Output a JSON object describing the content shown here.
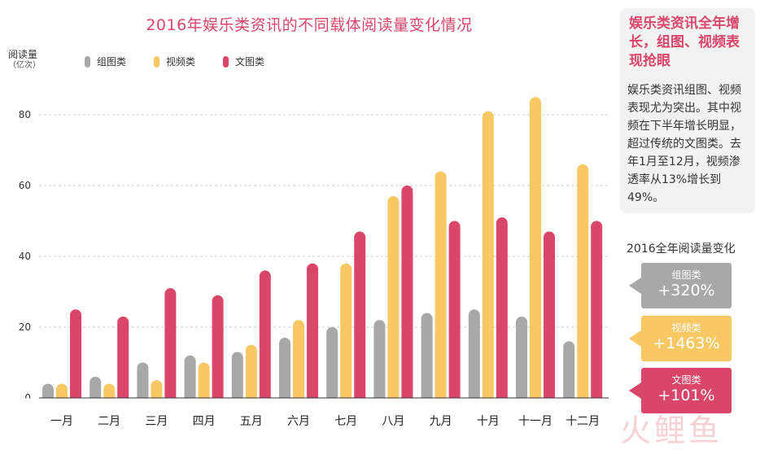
{
  "chart_data": {
    "type": "bar",
    "title": "2016年娱乐类资讯的不同载体阅读量变化情况",
    "ylabel": "阅读量",
    "ylabel_unit": "（亿次）",
    "ylim": [
      0,
      90
    ],
    "yticks": [
      0,
      20,
      40,
      60,
      80
    ],
    "grid": true,
    "legend_position": "top-left",
    "categories": [
      "一月",
      "二月",
      "三月",
      "四月",
      "五月",
      "六月",
      "七月",
      "八月",
      "九月",
      "十月",
      "十一月",
      "十二月"
    ],
    "series": [
      {
        "name": "组图类",
        "color": "#a8a8a8",
        "values": [
          4,
          6,
          10,
          12,
          13,
          17,
          20,
          22,
          24,
          25,
          23,
          16
        ]
      },
      {
        "name": "视频类",
        "color": "#f7c864",
        "values": [
          4,
          4,
          5,
          10,
          15,
          22,
          38,
          57,
          64,
          81,
          85,
          66
        ]
      },
      {
        "name": "文图类",
        "color": "#d9466a",
        "values": [
          25,
          23,
          31,
          29,
          36,
          38,
          47,
          60,
          50,
          51,
          47,
          50
        ]
      }
    ]
  },
  "side_panel": {
    "heading": "娱乐类资讯全年增长，组图、视频表现抢眼",
    "body": "娱乐类资讯组图、视频表现尤为突出。其中视频在下半年增长明显，超过传统的文图类。去年1月至12月，视频渗透率从13%增长到49%。"
  },
  "annual_change": {
    "title": "2016全年阅读量变化",
    "items": [
      {
        "name": "组图类",
        "value": "+320%",
        "color": "#a8a8a8"
      },
      {
        "name": "视频类",
        "value": "+1463%",
        "color": "#f7c864"
      },
      {
        "name": "文图类",
        "value": "+101%",
        "color": "#d9466a"
      }
    ]
  },
  "watermark": "火鲤鱼"
}
